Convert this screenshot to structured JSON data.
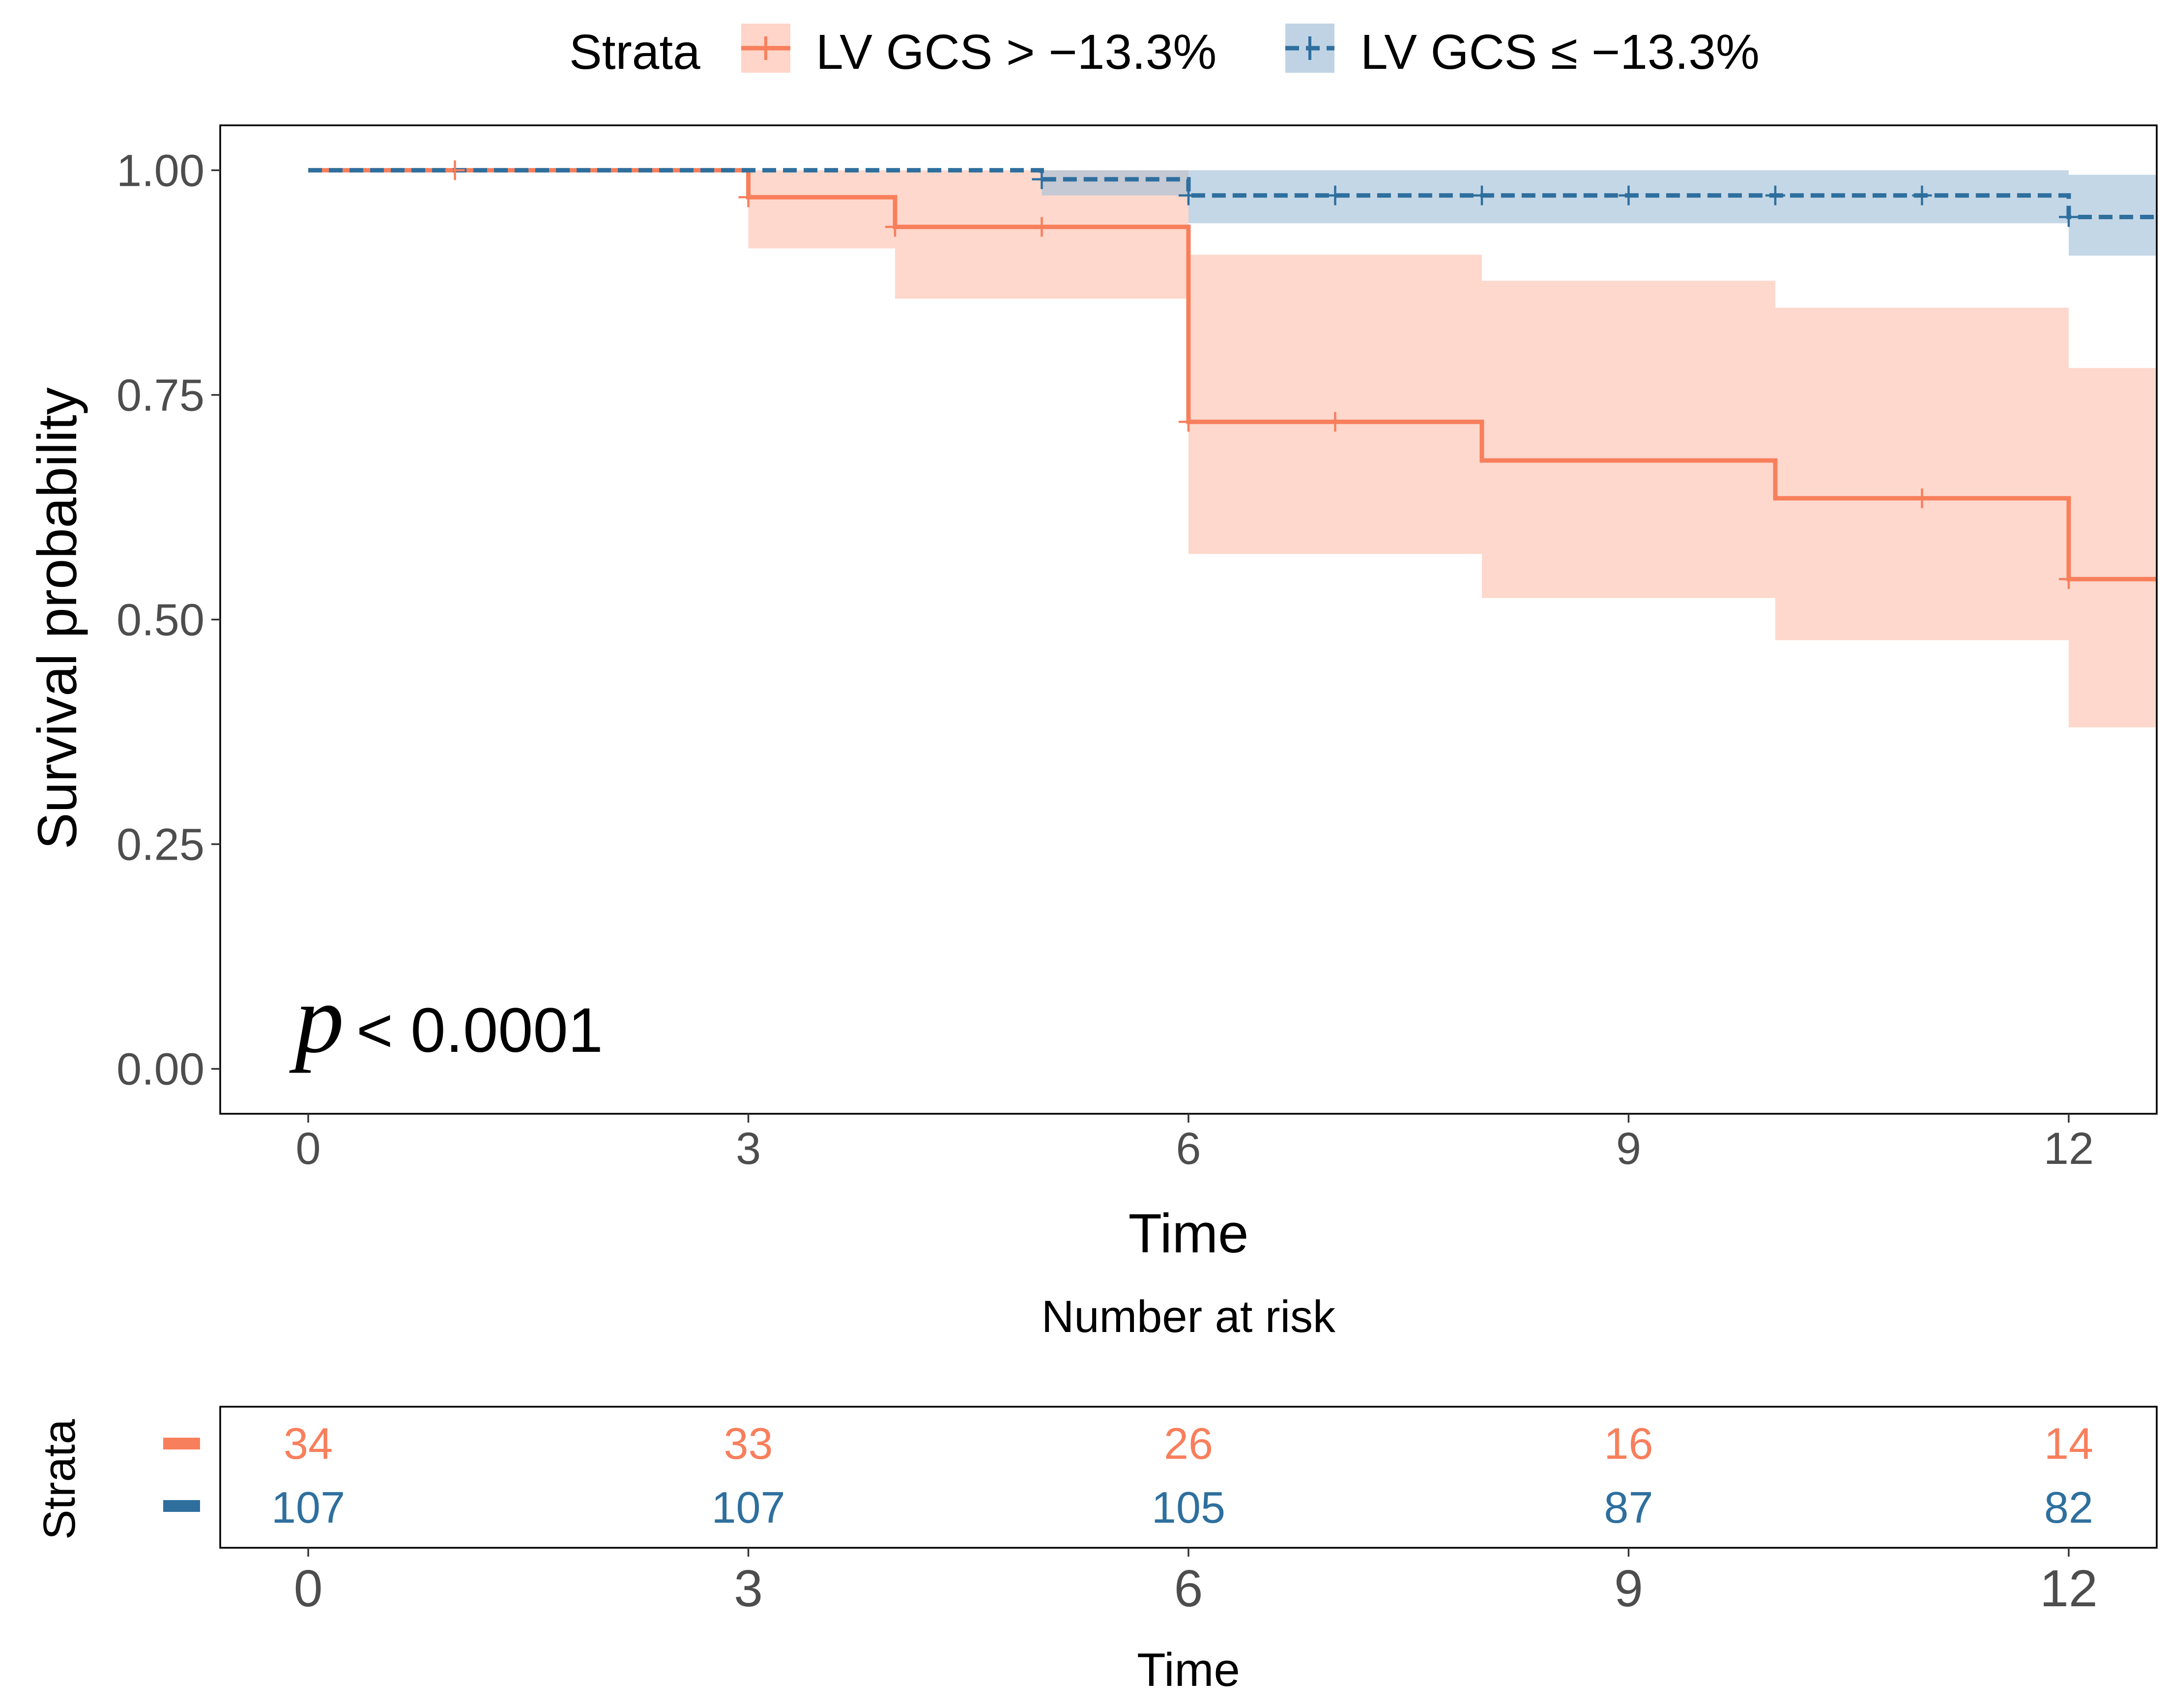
{
  "legend": {
    "title": "Strata",
    "entries": [
      {
        "label": "LV GCS > −13.3%",
        "color": "#f87f5c"
      },
      {
        "label": "LV GCS ≤ −13.3%",
        "color": "#2e6f9e"
      }
    ]
  },
  "pvalue": {
    "symbol": "p",
    "text": "< 0.0001"
  },
  "chart_data": {
    "type": "line",
    "subtype": "kaplan-meier",
    "xlabel": "Time",
    "ylabel": "Survival probability",
    "xlim": [
      -0.6,
      12.6
    ],
    "ylim": [
      -0.05,
      1.05
    ],
    "xticks": [
      0,
      3,
      6,
      9,
      12
    ],
    "yticks": [
      0.0,
      0.25,
      0.5,
      0.75,
      1.0
    ],
    "ytick_labels": [
      "0.00",
      "0.25",
      "0.50",
      "0.75",
      "1.00"
    ],
    "series": [
      {
        "name": "LV GCS > −13.3%",
        "color": "#f87f5c",
        "band_color": "#fdc3b0",
        "dashed": false,
        "steps": [
          {
            "t": 0,
            "s": 1.0,
            "lo": 1.0,
            "hi": 1.0
          },
          {
            "t": 3,
            "s": 0.97,
            "lo": 0.913,
            "hi": 1.0
          },
          {
            "t": 4,
            "s": 0.937,
            "lo": 0.857,
            "hi": 1.0
          },
          {
            "t": 6,
            "s": 0.72,
            "lo": 0.573,
            "hi": 0.906
          },
          {
            "t": 8,
            "s": 0.677,
            "lo": 0.524,
            "hi": 0.877
          },
          {
            "t": 10,
            "s": 0.635,
            "lo": 0.477,
            "hi": 0.847
          },
          {
            "t": 12,
            "s": 0.545,
            "lo": 0.38,
            "hi": 0.78
          }
        ],
        "end": 12.6,
        "censor": [
          {
            "t": 1,
            "s": 1.0
          },
          {
            "t": 3,
            "s": 0.97
          },
          {
            "t": 4,
            "s": 0.937
          },
          {
            "t": 5,
            "s": 0.937
          },
          {
            "t": 6,
            "s": 0.72
          },
          {
            "t": 7,
            "s": 0.72
          },
          {
            "t": 11,
            "s": 0.635
          },
          {
            "t": 12,
            "s": 0.545
          }
        ]
      },
      {
        "name": "LV GCS ≤ −13.3%",
        "color": "#2e6f9e",
        "band_color": "#a4c1d8",
        "dashed": true,
        "steps": [
          {
            "t": 0,
            "s": 1.0,
            "lo": 1.0,
            "hi": 1.0
          },
          {
            "t": 5,
            "s": 0.99,
            "lo": 0.972,
            "hi": 1.0
          },
          {
            "t": 6,
            "s": 0.972,
            "lo": 0.941,
            "hi": 1.0
          },
          {
            "t": 12,
            "s": 0.948,
            "lo": 0.905,
            "hi": 0.995
          }
        ],
        "end": 12.6,
        "censor": [
          {
            "t": 5,
            "s": 0.99
          },
          {
            "t": 6,
            "s": 0.972
          },
          {
            "t": 7,
            "s": 0.972
          },
          {
            "t": 8,
            "s": 0.972
          },
          {
            "t": 9,
            "s": 0.972
          },
          {
            "t": 10,
            "s": 0.972
          },
          {
            "t": 11,
            "s": 0.972
          },
          {
            "t": 12,
            "s": 0.948
          }
        ]
      }
    ],
    "risk_table": {
      "title": "Number at risk",
      "ylabel": "Strata",
      "xlabel": "Time",
      "times": [
        0,
        3,
        6,
        9,
        12
      ],
      "rows": [
        {
          "name": "LV GCS > −13.3%",
          "color": "#f87f5c",
          "values": [
            "34",
            "33",
            "26",
            "16",
            "14"
          ]
        },
        {
          "name": "LV GCS ≤ −13.3%",
          "color": "#2e6f9e",
          "values": [
            "107",
            "107",
            "105",
            "87",
            "82"
          ]
        }
      ]
    }
  }
}
